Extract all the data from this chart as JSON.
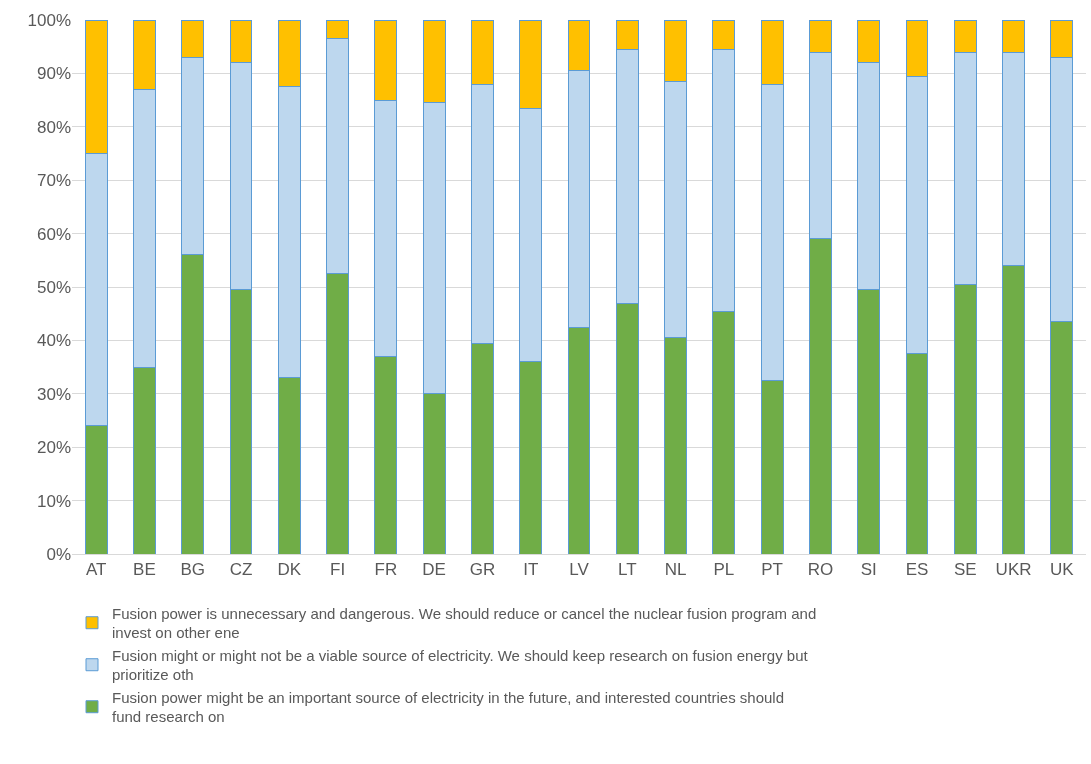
{
  "chart_data": {
    "type": "bar",
    "stacked": true,
    "categories": [
      "AT",
      "BE",
      "BG",
      "CZ",
      "DK",
      "FI",
      "FR",
      "DE",
      "GR",
      "IT",
      "LV",
      "LT",
      "NL",
      "PL",
      "PT",
      "RO",
      "SI",
      "ES",
      "SE",
      "UKR",
      "UK"
    ],
    "series": [
      {
        "name": "Fusion power might be an important source of electricity in the future, and interested countries should fund research on",
        "color": "#70ad47",
        "values": [
          24,
          35,
          56,
          49.5,
          33,
          52.5,
          37,
          30,
          39.5,
          36,
          42.5,
          47,
          40.5,
          45.5,
          32.5,
          59,
          49.5,
          37.5,
          50.5,
          54,
          43.5
        ]
      },
      {
        "name": "Fusion might or might not be a viable source of electricity. We should keep research on fusion energy but prioritize oth",
        "color": "#bdd7ee",
        "values": [
          51,
          52,
          37,
          42.5,
          54.5,
          44,
          48,
          54.5,
          48.5,
          47.5,
          48,
          47.5,
          48,
          49,
          55.5,
          35,
          42.5,
          52,
          43.5,
          40,
          49.5
        ]
      },
      {
        "name": "Fusion power is unnecessary and dangerous. We should reduce or cancel the nuclear fusion program and invest on other ene",
        "color": "#ffc000",
        "values": [
          25,
          13,
          7,
          8,
          12.5,
          3.5,
          15,
          15.5,
          12,
          16.5,
          9.5,
          5.5,
          11.5,
          5.5,
          12,
          6,
          8,
          10.5,
          6,
          6,
          7
        ]
      }
    ],
    "ylim": [
      0,
      100
    ],
    "yticks": [
      {
        "value": 0,
        "label": "0%"
      },
      {
        "value": 10,
        "label": "10%"
      },
      {
        "value": 20,
        "label": "20%"
      },
      {
        "value": 30,
        "label": "30%"
      },
      {
        "value": 40,
        "label": "40%"
      },
      {
        "value": 50,
        "label": "50%"
      },
      {
        "value": 60,
        "label": "60%"
      },
      {
        "value": 70,
        "label": "70%"
      },
      {
        "value": 80,
        "label": "80%"
      },
      {
        "value": 90,
        "label": "90%"
      },
      {
        "value": 100,
        "label": "100%"
      }
    ],
    "grid": "y",
    "legend": "bottom"
  }
}
